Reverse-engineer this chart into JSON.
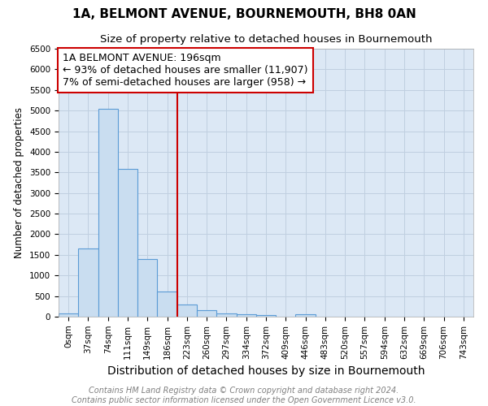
{
  "title": "1A, BELMONT AVENUE, BOURNEMOUTH, BH8 0AN",
  "subtitle": "Size of property relative to detached houses in Bournemouth",
  "xlabel": "Distribution of detached houses by size in Bournemouth",
  "ylabel": "Number of detached properties",
  "bar_labels": [
    "0sqm",
    "37sqm",
    "74sqm",
    "111sqm",
    "149sqm",
    "186sqm",
    "223sqm",
    "260sqm",
    "297sqm",
    "334sqm",
    "372sqm",
    "409sqm",
    "446sqm",
    "483sqm",
    "520sqm",
    "557sqm",
    "594sqm",
    "632sqm",
    "669sqm",
    "706sqm",
    "743sqm"
  ],
  "bar_values": [
    75,
    1650,
    5050,
    3580,
    1400,
    620,
    300,
    160,
    80,
    50,
    30,
    0,
    50,
    0,
    0,
    0,
    0,
    0,
    0,
    0,
    0
  ],
  "bar_color": "#c9ddf0",
  "bar_edge_color": "#5b9bd5",
  "vline_x": 5.5,
  "vline_color": "#cc0000",
  "annotation_box_text": "1A BELMONT AVENUE: 196sqm\n← 93% of detached houses are smaller (11,907)\n7% of semi-detached houses are larger (958) →",
  "annotation_box_color": "#cc0000",
  "annotation_text_fontsize": 9,
  "ylim": [
    0,
    6500
  ],
  "yticks": [
    0,
    500,
    1000,
    1500,
    2000,
    2500,
    3000,
    3500,
    4000,
    4500,
    5000,
    5500,
    6000,
    6500
  ],
  "grid_color": "#c0cfe0",
  "background_color": "#dce8f5",
  "footer_line1": "Contains HM Land Registry data © Crown copyright and database right 2024.",
  "footer_line2": "Contains public sector information licensed under the Open Government Licence v3.0.",
  "title_fontsize": 11,
  "subtitle_fontsize": 9.5,
  "xlabel_fontsize": 10,
  "ylabel_fontsize": 8.5,
  "tick_fontsize": 7.5,
  "footer_fontsize": 7
}
